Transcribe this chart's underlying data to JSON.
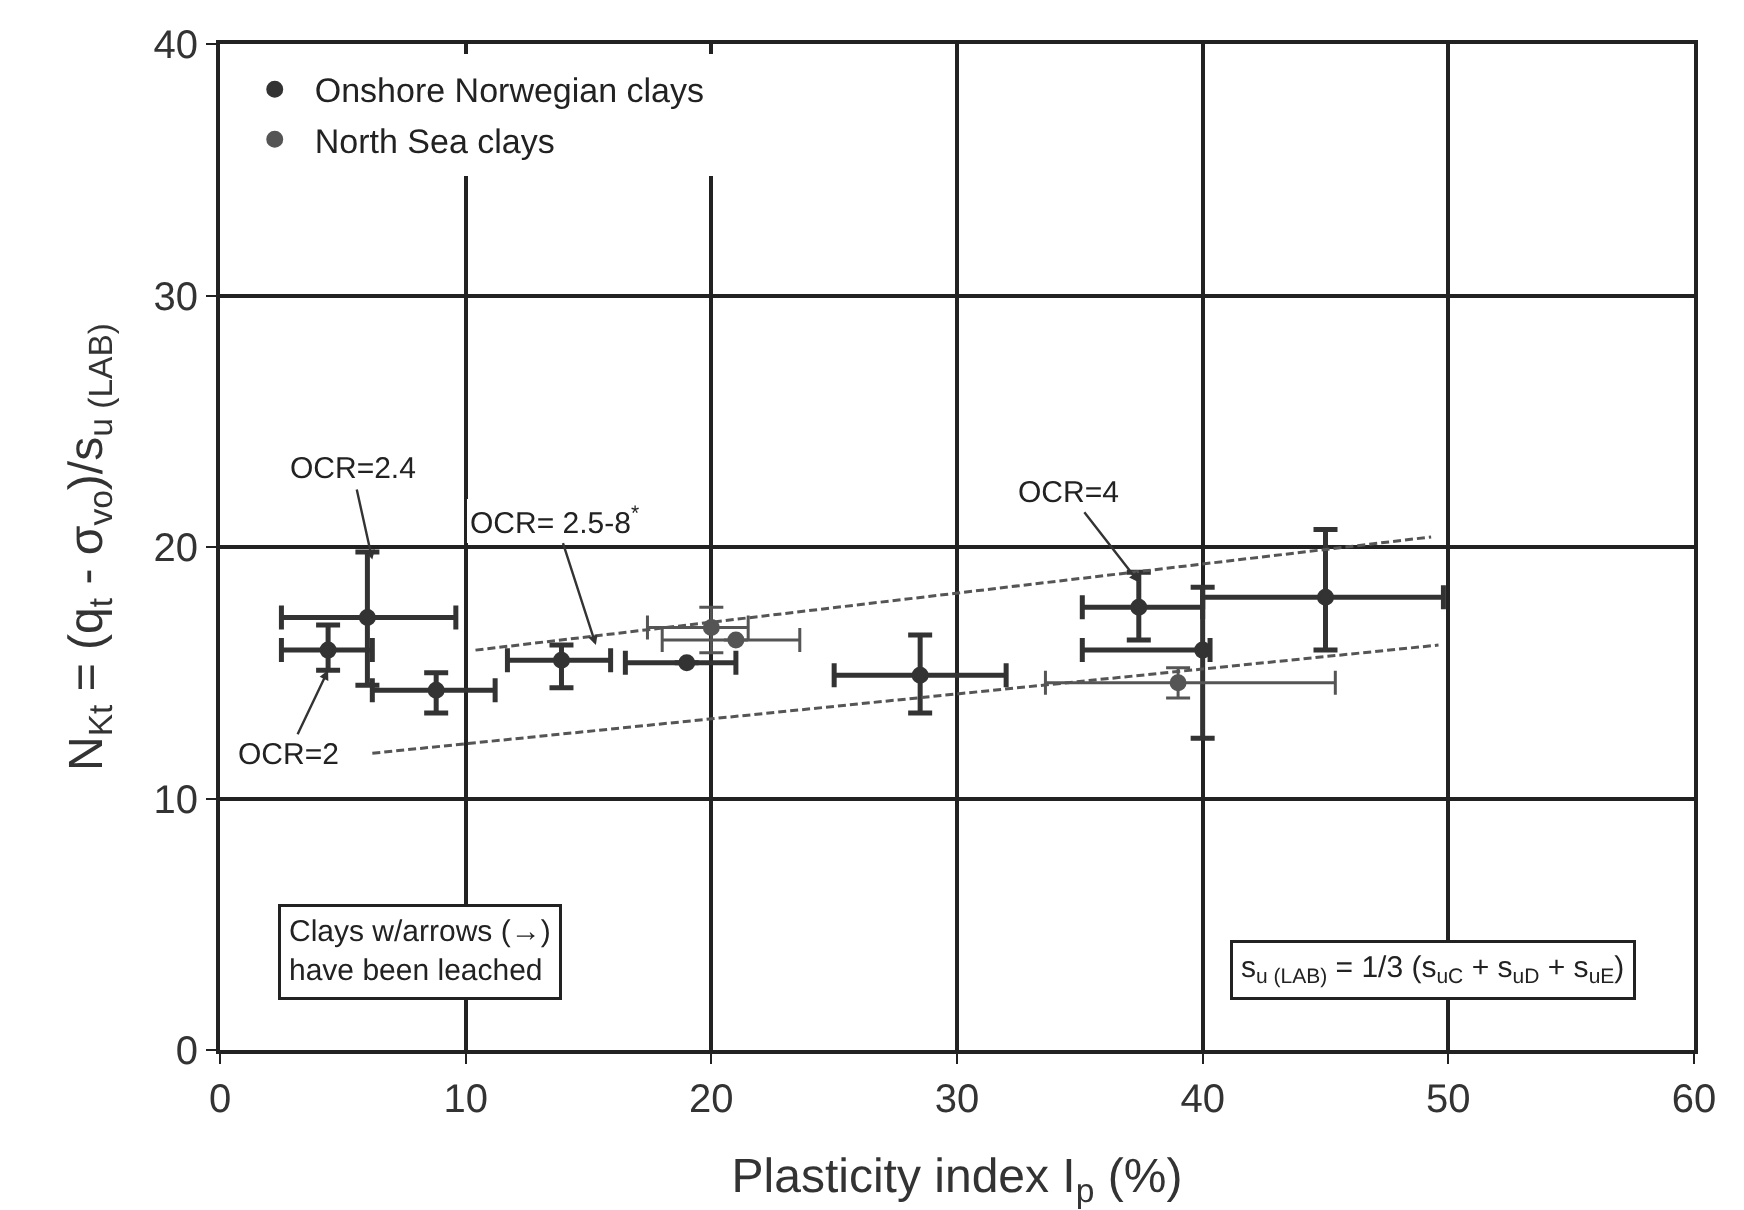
{
  "chart_data": {
    "type": "scatter",
    "xlabel": "Plasticity index I$_{p}$ (%)",
    "ylabel": "N$_{Kt}$ = (q$_{t}$ - σ$_{vo}$)/s$_{u (LAB)}$",
    "xlim": [
      0,
      60
    ],
    "xticks": [
      0,
      10,
      20,
      30,
      40,
      50,
      60
    ],
    "ylim": [
      0,
      40
    ],
    "yticks": [
      0,
      10,
      20,
      30,
      40
    ],
    "grid": true,
    "legend": "top left",
    "series": [
      {
        "name": "Onshore Norwegian clays",
        "color": "#333333",
        "marker": "circle",
        "x": [
          6,
          4.4,
          8.8,
          13.9,
          19,
          28.5,
          37.4,
          45,
          40
        ],
        "values": [
          17.2,
          15.9,
          14.3,
          15.5,
          15.4,
          14.9,
          17.6,
          18,
          15.9
        ],
        "xerrors": [
          [
            2.5,
            9.6
          ],
          [
            2.5,
            6.2
          ],
          [
            6.2,
            11.2
          ],
          [
            11.7,
            15.9
          ],
          [
            16.5,
            21
          ],
          [
            25,
            32
          ],
          [
            35.1,
            40
          ],
          [
            40,
            49.8
          ],
          [
            35.1,
            40.3
          ]
        ],
        "errors": [
          [
            14.5,
            19.8
          ],
          [
            15.1,
            16.9
          ],
          [
            13.4,
            15
          ],
          [
            14.4,
            16.1
          ],
          null,
          [
            13.4,
            16.5
          ],
          [
            16.3,
            19
          ],
          [
            15.9,
            20.7
          ],
          [
            12.4,
            18.4
          ]
        ]
      },
      {
        "name": "North Sea clays",
        "color": "#555555",
        "marker": "circle",
        "line_style": "dashed",
        "x": [
          20,
          21,
          39
        ],
        "values": [
          16.8,
          16.3,
          14.6
        ],
        "xerrors": [
          [
            17.4,
            21.5
          ],
          [
            18,
            23.6
          ],
          [
            33.6,
            45.4
          ]
        ],
        "errors": [
          [
            15.8,
            17.6
          ],
          null,
          [
            14,
            15.2
          ]
        ]
      },
      {
        "type": "line",
        "color": "#555555",
        "line_style": "dashed",
        "marker": "none",
        "x": [
          10.4,
          49.3
        ],
        "values": [
          15.9,
          20.4
        ]
      },
      {
        "type": "line",
        "color": "#555555",
        "line_style": "dashed",
        "marker": "none",
        "x": [
          6.2,
          49.6
        ],
        "values": [
          11.8,
          16.1
        ]
      }
    ],
    "annotations": [
      {
        "text": "OCR=2.4",
        "x": 6.2,
        "y": 19.5
      },
      {
        "text": "OCR=2",
        "x": 4.4,
        "y": 15.1
      },
      {
        "text": "OCR= 2.5-8$^{*}$",
        "x": 15.3,
        "y": 16.1
      },
      {
        "text": "OCR=4",
        "x": 37.4,
        "y": 18.6
      },
      "Clays w/arrows (→)\nhave been leached",
      "s$_{u (LAB)}$ = 1/3 (s$_{uC}$ + s$_{uD}$ + s$_{uE}$)"
    ]
  }
}
